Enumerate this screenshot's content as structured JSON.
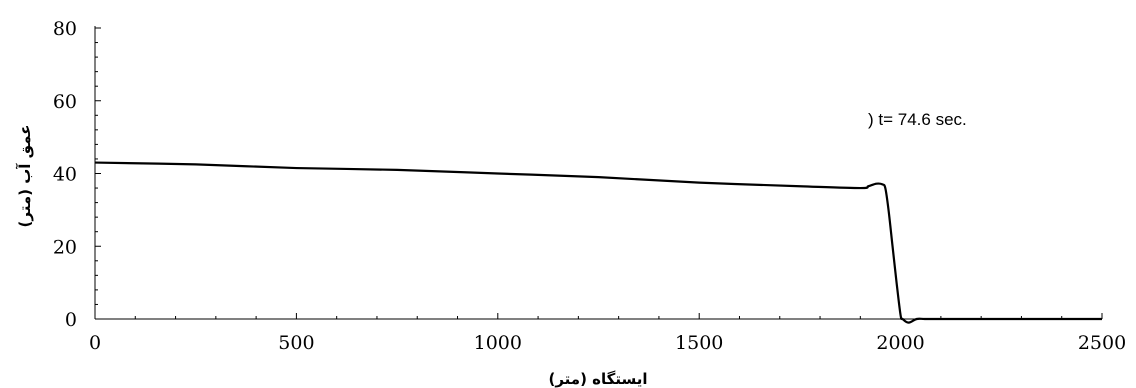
{
  "chart_data": {
    "type": "line",
    "title": "",
    "xlabel": "ایستگاه (متر)",
    "ylabel": "عمق آب (متر)",
    "xlim": [
      0,
      2500
    ],
    "ylim": [
      0,
      80
    ],
    "xticks": [
      0,
      500,
      1000,
      1500,
      2000,
      2500
    ],
    "yticks": [
      0,
      20,
      40,
      60,
      80
    ],
    "xtick_labels": [
      "0",
      "500",
      "1000",
      "1500",
      "2000",
      "2500"
    ],
    "ytick_labels": [
      "0",
      "20",
      "40",
      "60",
      "80"
    ],
    "grid": false,
    "legend": "none",
    "annotation": ") t= 74.6 sec.",
    "series": [
      {
        "color": "#000000",
        "x": [
          0,
          250,
          500,
          750,
          1000,
          1250,
          1500,
          1750,
          1900,
          1920,
          1940,
          1955,
          1962,
          1970,
          1980,
          1990,
          2000,
          2005,
          2020,
          2040,
          2060,
          2100,
          2300,
          2500
        ],
        "y": [
          43,
          42.5,
          41.5,
          41,
          40,
          39,
          37.5,
          36.5,
          36,
          36.5,
          37.2,
          37,
          36,
          30,
          20,
          10,
          1,
          0,
          -1,
          0,
          0,
          0,
          0,
          0
        ]
      }
    ]
  }
}
